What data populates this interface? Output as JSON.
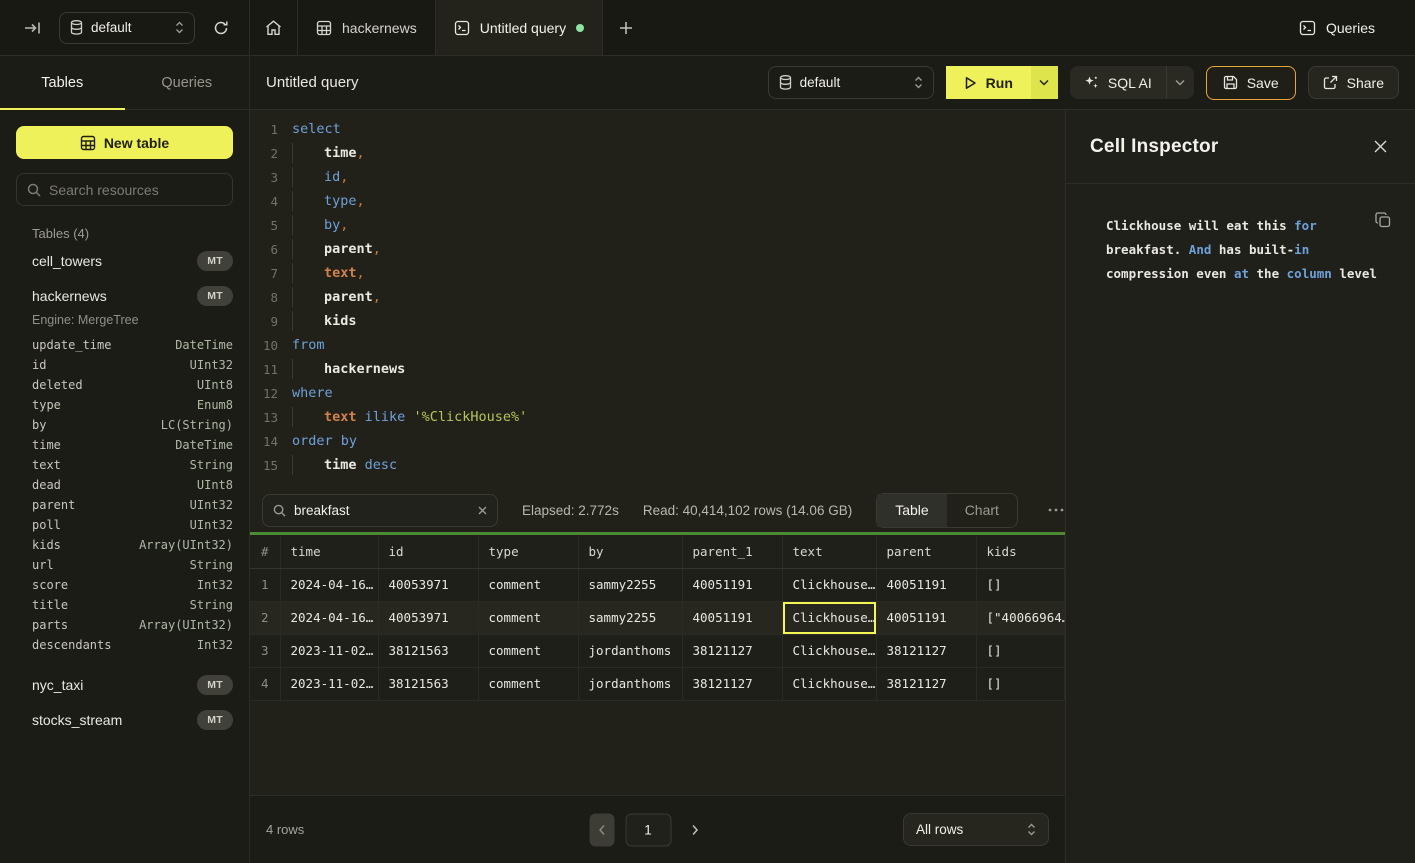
{
  "topbar": {
    "database_selector": "default",
    "tabs": [
      {
        "label": "hackernews",
        "icon": "table-icon"
      },
      {
        "label": "Untitled query",
        "icon": "terminal-icon",
        "active": true,
        "unsaved_dot": true
      }
    ],
    "queries_label": "Queries"
  },
  "sidebar": {
    "tabs": [
      {
        "label": "Tables",
        "active": true
      },
      {
        "label": "Queries"
      }
    ],
    "new_table_label": "New table",
    "search_placeholder": "Search resources",
    "section_label": "Tables (4)",
    "tables": [
      {
        "name": "cell_towers",
        "badge": "MT"
      },
      {
        "name": "hackernews",
        "badge": "MT",
        "engine": "Engine: MergeTree",
        "expanded": true
      },
      {
        "name": "nyc_taxi",
        "badge": "MT"
      },
      {
        "name": "stocks_stream",
        "badge": "MT"
      }
    ],
    "columns": [
      {
        "name": "update_time",
        "type": "DateTime"
      },
      {
        "name": "id",
        "type": "UInt32"
      },
      {
        "name": "deleted",
        "type": "UInt8"
      },
      {
        "name": "type",
        "type": "Enum8"
      },
      {
        "name": "by",
        "type": "LC(String)"
      },
      {
        "name": "time",
        "type": "DateTime"
      },
      {
        "name": "text",
        "type": "String"
      },
      {
        "name": "dead",
        "type": "UInt8"
      },
      {
        "name": "parent",
        "type": "UInt32"
      },
      {
        "name": "poll",
        "type": "UInt32"
      },
      {
        "name": "kids",
        "type": "Array(UInt32)"
      },
      {
        "name": "url",
        "type": "String"
      },
      {
        "name": "score",
        "type": "Int32"
      },
      {
        "name": "title",
        "type": "String"
      },
      {
        "name": "parts",
        "type": "Array(UInt32)"
      },
      {
        "name": "descendants",
        "type": "Int32"
      }
    ]
  },
  "query": {
    "title": "Untitled query",
    "database_selector": "default",
    "run_label": "Run",
    "sql_ai_label": "SQL AI",
    "save_label": "Save",
    "share_label": "Share"
  },
  "editor": {
    "lines": [
      {
        "n": 1,
        "indent": 0,
        "tokens": [
          {
            "t": "select",
            "c": "kw"
          }
        ]
      },
      {
        "n": 2,
        "indent": 1,
        "tokens": [
          {
            "t": "time",
            "c": "id"
          },
          {
            "t": ",",
            "c": "pun"
          }
        ]
      },
      {
        "n": 3,
        "indent": 1,
        "tokens": [
          {
            "t": "id",
            "c": "kw"
          },
          {
            "t": ",",
            "c": "pun"
          }
        ]
      },
      {
        "n": 4,
        "indent": 1,
        "tokens": [
          {
            "t": "type",
            "c": "kw"
          },
          {
            "t": ",",
            "c": "pun"
          }
        ]
      },
      {
        "n": 5,
        "indent": 1,
        "tokens": [
          {
            "t": "by",
            "c": "kw"
          },
          {
            "t": ",",
            "c": "pun"
          }
        ]
      },
      {
        "n": 6,
        "indent": 1,
        "tokens": [
          {
            "t": "parent",
            "c": "id"
          },
          {
            "t": ",",
            "c": "pun"
          }
        ]
      },
      {
        "n": 7,
        "indent": 1,
        "tokens": [
          {
            "t": "text",
            "c": "fld"
          },
          {
            "t": ",",
            "c": "pun"
          }
        ]
      },
      {
        "n": 8,
        "indent": 1,
        "tokens": [
          {
            "t": "parent",
            "c": "id"
          },
          {
            "t": ",",
            "c": "pun"
          }
        ]
      },
      {
        "n": 9,
        "indent": 1,
        "tokens": [
          {
            "t": "kids",
            "c": "id"
          }
        ]
      },
      {
        "n": 10,
        "indent": 0,
        "tokens": [
          {
            "t": "from",
            "c": "kw"
          }
        ]
      },
      {
        "n": 11,
        "indent": 1,
        "tokens": [
          {
            "t": "hackernews",
            "c": "id"
          }
        ]
      },
      {
        "n": 12,
        "indent": 0,
        "tokens": [
          {
            "t": "where",
            "c": "kw"
          }
        ]
      },
      {
        "n": 13,
        "indent": 1,
        "tokens": [
          {
            "t": "text",
            "c": "fld"
          },
          {
            "t": " ",
            "c": "sp"
          },
          {
            "t": "ilike",
            "c": "kw"
          },
          {
            "t": " ",
            "c": "sp"
          },
          {
            "t": "'%ClickHouse%'",
            "c": "str"
          }
        ]
      },
      {
        "n": 14,
        "indent": 0,
        "tokens": [
          {
            "t": "order by",
            "c": "kw"
          }
        ]
      },
      {
        "n": 15,
        "indent": 1,
        "tokens": [
          {
            "t": "time",
            "c": "id"
          },
          {
            "t": " ",
            "c": "sp"
          },
          {
            "t": "desc",
            "c": "kw"
          }
        ]
      }
    ]
  },
  "results": {
    "search_value": "breakfast",
    "elapsed": "Elapsed: 2.772s",
    "read": "Read: 40,414,102 rows (14.06 GB)",
    "view_tabs": [
      {
        "label": "Table",
        "active": true
      },
      {
        "label": "Chart"
      }
    ],
    "table": {
      "columns": [
        "#",
        "time",
        "id",
        "type",
        "by",
        "parent_1",
        "text",
        "parent",
        "kids"
      ],
      "rows": [
        {
          "num": "1",
          "cells": [
            "2024-04-16…",
            "40053971",
            "comment",
            "sammy2255",
            "40051191",
            "Clickhouse…",
            "40051191",
            "[]"
          ]
        },
        {
          "num": "2",
          "selected": true,
          "selected_cell_index": 5,
          "cells": [
            "2024-04-16…",
            "40053971",
            "comment",
            "sammy2255",
            "40051191",
            "Clickhouse…",
            "40051191",
            "[\"40066964…"
          ]
        },
        {
          "num": "3",
          "cells": [
            "2023-11-02…",
            "38121563",
            "comment",
            "jordanthoms",
            "38121127",
            "Clickhouse…",
            "38121127",
            "[]"
          ]
        },
        {
          "num": "4",
          "cells": [
            "2023-11-02…",
            "38121563",
            "comment",
            "jordanthoms",
            "38121127",
            "Clickhouse…",
            "38121127",
            "[]"
          ]
        }
      ]
    },
    "footer": {
      "row_count": "4 rows",
      "page": "1",
      "page_size": "All rows"
    }
  },
  "inspector": {
    "title": "Cell Inspector",
    "tokens": [
      {
        "t": "Clickhouse will eat this ",
        "c": "plain"
      },
      {
        "t": "for",
        "c": "kw"
      },
      {
        "t": " breakfast. ",
        "c": "plain"
      },
      {
        "t": "And",
        "c": "kw"
      },
      {
        "t": " has built-",
        "c": "plain"
      },
      {
        "t": "in",
        "c": "kw"
      },
      {
        "t": " compression even ",
        "c": "plain"
      },
      {
        "t": "at",
        "c": "kw"
      },
      {
        "t": " the ",
        "c": "plain"
      },
      {
        "t": "column",
        "c": "kw"
      },
      {
        "t": " level",
        "c": "plain"
      }
    ]
  },
  "colors": {
    "accent_yellow": "#eef159",
    "save_border_amber": "#e9a43b",
    "results_green_bar": "#4c8b33",
    "code_keyword_blue": "#6ea1d9",
    "code_field_orange": "#d0824a",
    "code_string_yellow": "#b9c357",
    "unsaved_dot_green": "#8fe3a4"
  }
}
